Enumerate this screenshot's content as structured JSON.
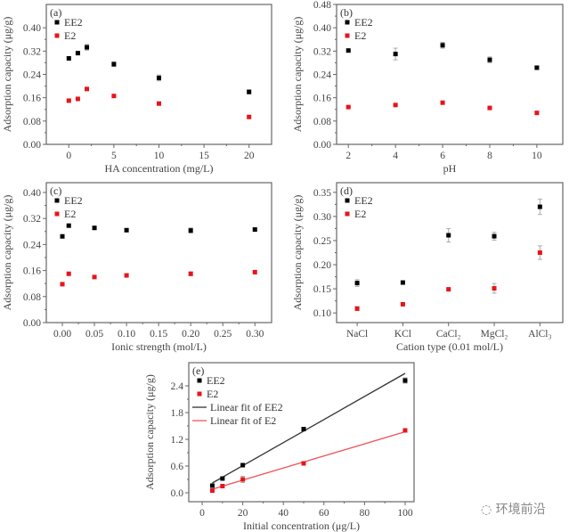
{
  "chart_data": [
    {
      "type": "scatter",
      "panel_label": "(a)",
      "xlabel": "HA concentration (mg/L)",
      "ylabel": "Adsorption capacity (μg/g)",
      "xlim": [
        -2.5,
        22.5
      ],
      "ylim": [
        0,
        0.48
      ],
      "xticks": [
        0,
        5,
        10,
        15,
        20
      ],
      "xtick_labels": [
        "0",
        "5",
        "10",
        "15",
        "20"
      ],
      "yticks": [
        0,
        0.08,
        0.16,
        0.24,
        0.32,
        0.4
      ],
      "ytick_labels": [
        "0.00",
        "0.08",
        "0.16",
        "0.24",
        "0.32",
        "0.40"
      ],
      "x": [
        0,
        1,
        2,
        5,
        10,
        20
      ],
      "series": [
        {
          "name": "EE2",
          "color": "#000000",
          "values": [
            0.295,
            0.313,
            0.333,
            0.275,
            0.228,
            0.18
          ],
          "err": [
            0.004,
            0.004,
            0.01,
            0.008,
            0.01,
            0.007
          ]
        },
        {
          "name": "E2",
          "color": "#e8141b",
          "values": [
            0.15,
            0.156,
            0.19,
            0.166,
            0.14,
            0.094
          ],
          "err": [
            0.003,
            0.003,
            0.005,
            0.004,
            0.003,
            0.003
          ]
        }
      ],
      "legend": "top-left"
    },
    {
      "type": "scatter",
      "panel_label": "(b)",
      "xlabel": "pH",
      "ylabel": "Adsorption capacity (μg/g)",
      "xlim": [
        1.5,
        11.1
      ],
      "ylim": [
        0,
        0.48
      ],
      "xticks": [
        2,
        4,
        6,
        8,
        10
      ],
      "xtick_labels": [
        "2",
        "4",
        "6",
        "8",
        "10"
      ],
      "yticks": [
        0,
        0.08,
        0.16,
        0.24,
        0.32,
        0.4,
        0.48
      ],
      "ytick_labels": [
        "0.00",
        "0.08",
        "0.16",
        "0.24",
        "0.32",
        "0.40",
        "0.48"
      ],
      "x": [
        2,
        4,
        6,
        8,
        10
      ],
      "series": [
        {
          "name": "EE2",
          "color": "#000000",
          "values": [
            0.322,
            0.31,
            0.34,
            0.29,
            0.263
          ],
          "err": [
            0.004,
            0.02,
            0.01,
            0.01,
            0.005
          ]
        },
        {
          "name": "E2",
          "color": "#e8141b",
          "values": [
            0.128,
            0.135,
            0.143,
            0.125,
            0.108
          ],
          "err": [
            0.003,
            0.003,
            0.003,
            0.003,
            0.003
          ]
        }
      ],
      "legend": "top-left"
    },
    {
      "type": "scatter",
      "panel_label": "(c)",
      "xlabel": "Ionic strength (mol/L)",
      "ylabel": "Adsorption capacity (μg/g)",
      "xlim": [
        -0.025,
        0.326
      ],
      "ylim": [
        0,
        0.43
      ],
      "xticks": [
        0,
        0.05,
        0.1,
        0.15,
        0.2,
        0.25,
        0.3
      ],
      "xtick_labels": [
        "0.00",
        "0.05",
        "0.10",
        "0.15",
        "0.20",
        "0.25",
        "0.30"
      ],
      "yticks": [
        0,
        0.08,
        0.16,
        0.24,
        0.32,
        0.4
      ],
      "ytick_labels": [
        "0.00",
        "0.08",
        "0.16",
        "0.24",
        "0.32",
        "0.40"
      ],
      "x": [
        0,
        0.01,
        0.05,
        0.1,
        0.2,
        0.3
      ],
      "series": [
        {
          "name": "EE2",
          "color": "#000000",
          "values": [
            0.265,
            0.298,
            0.291,
            0.284,
            0.283,
            0.286
          ],
          "err": [
            0.003,
            0.003,
            0.003,
            0.004,
            0.008,
            0.003
          ]
        },
        {
          "name": "E2",
          "color": "#e8141b",
          "values": [
            0.118,
            0.15,
            0.14,
            0.145,
            0.15,
            0.155
          ],
          "err": [
            0.004,
            0.005,
            0.003,
            0.003,
            0.006,
            0.005
          ]
        }
      ],
      "legend": "top-left"
    },
    {
      "type": "scatter",
      "panel_label": "(d)",
      "xlabel": "Cation type (0.01 mol/L)",
      "ylabel": "Adsorption capacity (μg/g)",
      "categories": [
        "NaCl",
        "KCl",
        "CaCl₂",
        "MgCl₂",
        "AlCl₃"
      ],
      "xlim": [
        -0.45,
        4.5
      ],
      "ylim": [
        0.08,
        0.37
      ],
      "yticks": [
        0.1,
        0.15,
        0.2,
        0.25,
        0.3,
        0.35
      ],
      "ytick_labels": [
        "0.10",
        "0.15",
        "0.20",
        "0.25",
        "0.30",
        "0.35"
      ],
      "series": [
        {
          "name": "EE2",
          "color": "#000000",
          "values": [
            0.162,
            0.163,
            0.261,
            0.259,
            0.32
          ],
          "err": [
            0.007,
            0.003,
            0.014,
            0.008,
            0.016
          ]
        },
        {
          "name": "E2",
          "color": "#e8141b",
          "values": [
            0.109,
            0.118,
            0.149,
            0.151,
            0.225
          ],
          "err": [
            0.004,
            0.002,
            0.002,
            0.01,
            0.014
          ]
        }
      ],
      "legend": "top-left"
    },
    {
      "type": "scatter",
      "panel_label": "(e)",
      "xlabel": "Initial concentration (μg/L)",
      "ylabel": "Adsorption capacity (μg/g)",
      "xlim": [
        -6.6,
        104.4
      ],
      "ylim": [
        -0.2,
        2.92
      ],
      "xticks": [
        0,
        20,
        40,
        60,
        80,
        100
      ],
      "xtick_labels": [
        "0",
        "20",
        "40",
        "60",
        "80",
        "100"
      ],
      "yticks": [
        0,
        0.6,
        1.2,
        1.8,
        2.4
      ],
      "ytick_labels": [
        "0.0",
        "0.6",
        "1.2",
        "1.8",
        "2.4"
      ],
      "x": [
        5,
        10,
        20,
        50,
        100
      ],
      "series": [
        {
          "name": "EE2",
          "color": "#000000",
          "values": [
            0.16,
            0.32,
            0.62,
            1.43,
            2.52
          ],
          "err": [
            0.02,
            0.02,
            0.02,
            0.03,
            0.06
          ]
        },
        {
          "name": "E2",
          "color": "#e8141b",
          "values": [
            0.05,
            0.15,
            0.3,
            0.66,
            1.4
          ],
          "err": [
            0.02,
            0.02,
            0.07,
            0.03,
            0.03
          ]
        }
      ],
      "fits": [
        {
          "name": "Linear fit of EE2",
          "color": "#333333",
          "x": [
            5,
            100
          ],
          "y": [
            0.22,
            2.68
          ]
        },
        {
          "name": "Linear fit of E2",
          "color": "#f0505a",
          "x": [
            5,
            100
          ],
          "y": [
            0.08,
            1.37
          ]
        }
      ],
      "legend": "top-left"
    }
  ],
  "watermark": "环境前沿"
}
